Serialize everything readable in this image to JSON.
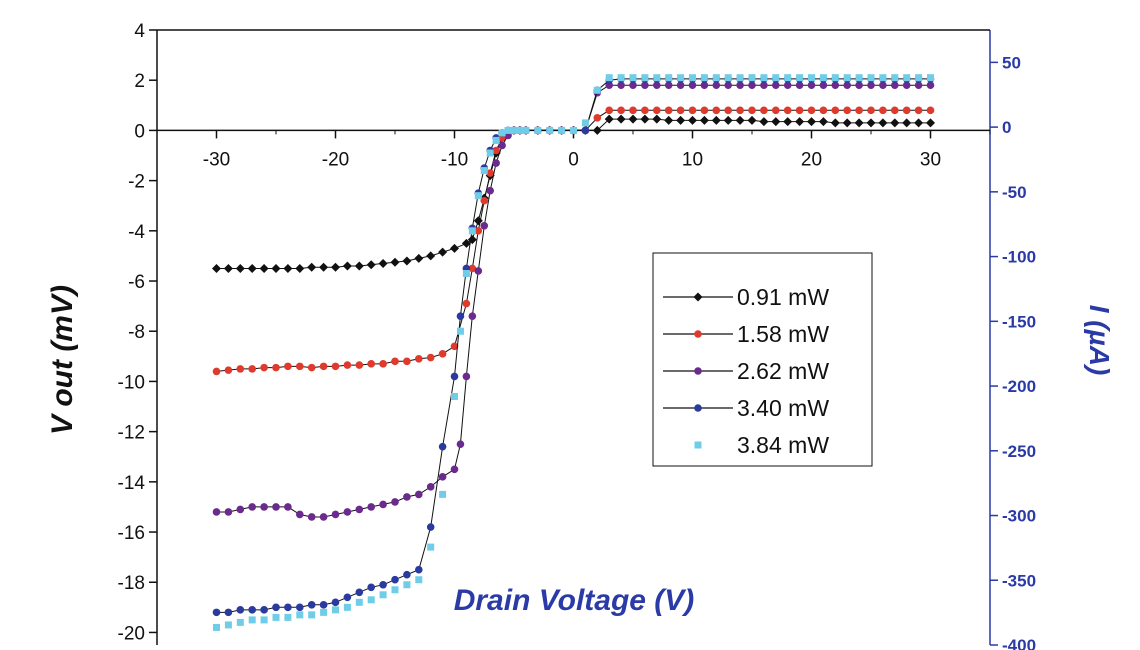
{
  "chart_data": {
    "type": "scatter",
    "title": "",
    "xlabel": "Drain Voltage (V)",
    "ylabel": "V out (mV)",
    "y2label": "I (µA)",
    "xlim": [
      -35,
      35
    ],
    "ylim": [
      -20.5,
      4
    ],
    "y2lim": [
      -400,
      75
    ],
    "x_ticks": [
      -30,
      -20,
      -10,
      0,
      10,
      20,
      30
    ],
    "y_ticks": [
      4,
      2,
      0,
      -2,
      -4,
      -6,
      -8,
      -10,
      -12,
      -14,
      -16,
      -18,
      -20
    ],
    "y2_ticks": [
      50,
      0,
      -50,
      -100,
      -150,
      -200,
      -250,
      -300,
      -350,
      -400
    ],
    "grid": false,
    "legend_position": "right-center",
    "colors": {
      "axis": "#111111",
      "right_axis": "#2a3aa6",
      "xlabel": "#2a3aa6"
    },
    "series": [
      {
        "name": "0.91 mW",
        "color": "#111111",
        "marker": "diamond",
        "line": true,
        "x": [
          -30,
          -29,
          -28,
          -27,
          -26,
          -25,
          -24,
          -23,
          -22,
          -21,
          -20,
          -19,
          -18,
          -17,
          -16,
          -15,
          -14,
          -13,
          -12,
          -11,
          -10,
          -9,
          -8.5,
          -8,
          -7.5,
          -7,
          -6.5,
          -6,
          -5.5,
          -5,
          -4.5,
          -4,
          -3,
          -2,
          -1,
          0,
          1,
          2,
          3,
          4,
          5,
          6,
          7,
          8,
          9,
          10,
          11,
          12,
          13,
          14,
          15,
          16,
          17,
          18,
          19,
          20,
          21,
          22,
          23,
          24,
          25,
          26,
          27,
          28,
          29,
          30
        ],
        "y": [
          -5.5,
          -5.5,
          -5.5,
          -5.5,
          -5.5,
          -5.5,
          -5.5,
          -5.5,
          -5.45,
          -5.45,
          -5.45,
          -5.4,
          -5.4,
          -5.35,
          -5.3,
          -5.25,
          -5.2,
          -5.1,
          -5.0,
          -4.85,
          -4.7,
          -4.5,
          -4.35,
          -3.6,
          -2.7,
          -1.8,
          -0.9,
          -0.3,
          -0.05,
          0,
          0,
          0,
          0,
          0,
          0,
          0,
          0,
          0,
          0.45,
          0.45,
          0.45,
          0.45,
          0.45,
          0.4,
          0.4,
          0.4,
          0.4,
          0.4,
          0.4,
          0.4,
          0.4,
          0.35,
          0.35,
          0.35,
          0.35,
          0.35,
          0.35,
          0.3,
          0.3,
          0.3,
          0.3,
          0.3,
          0.3,
          0.3,
          0.3,
          0.3
        ]
      },
      {
        "name": "1.58 mW",
        "color": "#e03a2c",
        "marker": "circle",
        "line": true,
        "x": [
          -30,
          -29,
          -28,
          -27,
          -26,
          -25,
          -24,
          -23,
          -22,
          -21,
          -20,
          -19,
          -18,
          -17,
          -16,
          -15,
          -14,
          -13,
          -12,
          -11,
          -10,
          -9,
          -8.5,
          -8,
          -7.5,
          -7,
          -6.5,
          -6,
          -5.5,
          -5,
          -4.5,
          -4,
          -3,
          -2,
          -1,
          0,
          1,
          2,
          3,
          4,
          5,
          6,
          7,
          8,
          9,
          10,
          11,
          12,
          13,
          14,
          15,
          16,
          17,
          18,
          19,
          20,
          21,
          22,
          23,
          24,
          25,
          26,
          27,
          28,
          29,
          30
        ],
        "y": [
          -9.6,
          -9.55,
          -9.5,
          -9.5,
          -9.45,
          -9.45,
          -9.4,
          -9.4,
          -9.45,
          -9.4,
          -9.4,
          -9.35,
          -9.35,
          -9.3,
          -9.3,
          -9.2,
          -9.2,
          -9.1,
          -9.05,
          -8.9,
          -8.6,
          -6.9,
          -5.5,
          -4.0,
          -2.8,
          -1.7,
          -0.8,
          -0.3,
          -0.05,
          0,
          0,
          0,
          0,
          0,
          0,
          0,
          0,
          0.5,
          0.8,
          0.8,
          0.8,
          0.8,
          0.8,
          0.8,
          0.8,
          0.8,
          0.8,
          0.8,
          0.8,
          0.8,
          0.8,
          0.8,
          0.8,
          0.8,
          0.8,
          0.8,
          0.8,
          0.8,
          0.8,
          0.8,
          0.8,
          0.8,
          0.8,
          0.8,
          0.8,
          0.8
        ]
      },
      {
        "name": "2.62 mW",
        "color": "#6a2a8e",
        "marker": "circle",
        "line": true,
        "x": [
          -30,
          -29,
          -28,
          -27,
          -26,
          -25,
          -24,
          -23,
          -22,
          -21,
          -20,
          -19,
          -18,
          -17,
          -16,
          -15,
          -14,
          -13,
          -12,
          -11,
          -10,
          -9.5,
          -9,
          -8.5,
          -8,
          -7.5,
          -7,
          -6.5,
          -6,
          -5.5,
          -5,
          -4.5,
          -4,
          -3,
          -2,
          -1,
          0,
          1,
          2,
          3,
          4,
          5,
          6,
          7,
          8,
          9,
          10,
          11,
          12,
          13,
          14,
          15,
          16,
          17,
          18,
          19,
          20,
          21,
          22,
          23,
          24,
          25,
          26,
          27,
          28,
          29,
          30
        ],
        "y": [
          -15.2,
          -15.2,
          -15.1,
          -15.0,
          -15.0,
          -15.0,
          -15.0,
          -15.3,
          -15.4,
          -15.4,
          -15.3,
          -15.2,
          -15.1,
          -15.0,
          -14.9,
          -14.8,
          -14.6,
          -14.5,
          -14.2,
          -13.8,
          -13.5,
          -12.5,
          -9.8,
          -7.4,
          -5.6,
          -3.8,
          -2.4,
          -1.3,
          -0.6,
          -0.2,
          0,
          0,
          0,
          0,
          0,
          0,
          0,
          0,
          1.5,
          1.8,
          1.8,
          1.8,
          1.8,
          1.8,
          1.8,
          1.8,
          1.8,
          1.8,
          1.8,
          1.8,
          1.8,
          1.8,
          1.8,
          1.8,
          1.8,
          1.8,
          1.8,
          1.8,
          1.8,
          1.8,
          1.8,
          1.8,
          1.8,
          1.8,
          1.8,
          1.8,
          1.8
        ]
      },
      {
        "name": "3.40 mW",
        "color": "#2b3a9e",
        "marker": "circle",
        "line": true,
        "x": [
          -30,
          -29,
          -28,
          -27,
          -26,
          -25,
          -24,
          -23,
          -22,
          -21,
          -20,
          -19,
          -18,
          -17,
          -16,
          -15,
          -14,
          -13,
          -12,
          -11,
          -10,
          -9.5,
          -9,
          -8.5,
          -8,
          -7.5,
          -7,
          -6.5,
          -6,
          -5.5,
          -5,
          -4.5,
          -4,
          -3,
          -2,
          -1,
          0,
          1,
          2,
          3,
          4,
          5,
          6,
          7,
          8,
          9,
          10,
          11,
          12,
          13,
          14,
          15,
          16,
          17,
          18,
          19,
          20,
          21,
          22,
          23,
          24,
          25,
          26,
          27,
          28,
          29,
          30
        ],
        "y": [
          -19.2,
          -19.2,
          -19.1,
          -19.1,
          -19.1,
          -19.0,
          -19.0,
          -19.0,
          -18.9,
          -18.9,
          -18.8,
          -18.6,
          -18.4,
          -18.2,
          -18.1,
          -17.9,
          -17.7,
          -17.5,
          -15.8,
          -12.6,
          -9.8,
          -7.4,
          -5.5,
          -3.9,
          -2.5,
          -1.5,
          -0.8,
          -0.3,
          -0.1,
          0,
          0,
          0,
          0,
          0,
          0,
          0,
          0,
          0,
          1.6,
          2.0,
          2.05,
          2.05,
          2.05,
          2.05,
          2.05,
          2.05,
          2.05,
          2.05,
          2.05,
          2.05,
          2.05,
          2.05,
          2.05,
          2.05,
          2.05,
          2.05,
          2.05,
          2.05,
          2.05,
          2.05,
          2.05,
          2.05,
          2.05,
          2.05,
          2.05,
          2.05,
          2.05
        ]
      },
      {
        "name": "3.84 mW",
        "color": "#6fcde8",
        "marker": "square",
        "line": false,
        "x": [
          -30,
          -29,
          -28,
          -27,
          -26,
          -25,
          -24,
          -23,
          -22,
          -21,
          -20,
          -19,
          -18,
          -17,
          -16,
          -15,
          -14,
          -13,
          -12,
          -11,
          -10,
          -9.5,
          -9,
          -8.5,
          -8,
          -7.5,
          -7,
          -6.5,
          -6,
          -5.5,
          -5,
          -4.5,
          -4,
          -3,
          -2,
          -1,
          0,
          1,
          2,
          3,
          4,
          5,
          6,
          7,
          8,
          9,
          10,
          11,
          12,
          13,
          14,
          15,
          16,
          17,
          18,
          19,
          20,
          21,
          22,
          23,
          24,
          25,
          26,
          27,
          28,
          29,
          30
        ],
        "y": [
          -19.8,
          -19.7,
          -19.6,
          -19.5,
          -19.5,
          -19.4,
          -19.4,
          -19.3,
          -19.3,
          -19.2,
          -19.1,
          -19.0,
          -18.8,
          -18.7,
          -18.5,
          -18.3,
          -18.1,
          -17.9,
          -16.6,
          -14.5,
          -10.6,
          -8.0,
          -5.7,
          -4.0,
          -2.6,
          -1.6,
          -0.9,
          -0.4,
          -0.1,
          0,
          0,
          0,
          0,
          0,
          0,
          0,
          0,
          0.3,
          1.6,
          2.1,
          2.1,
          2.1,
          2.1,
          2.1,
          2.1,
          2.1,
          2.1,
          2.1,
          2.1,
          2.1,
          2.1,
          2.1,
          2.1,
          2.1,
          2.1,
          2.1,
          2.1,
          2.1,
          2.1,
          2.1,
          2.1,
          2.1,
          2.1,
          2.1,
          2.1,
          2.1,
          2.1
        ]
      }
    ]
  }
}
